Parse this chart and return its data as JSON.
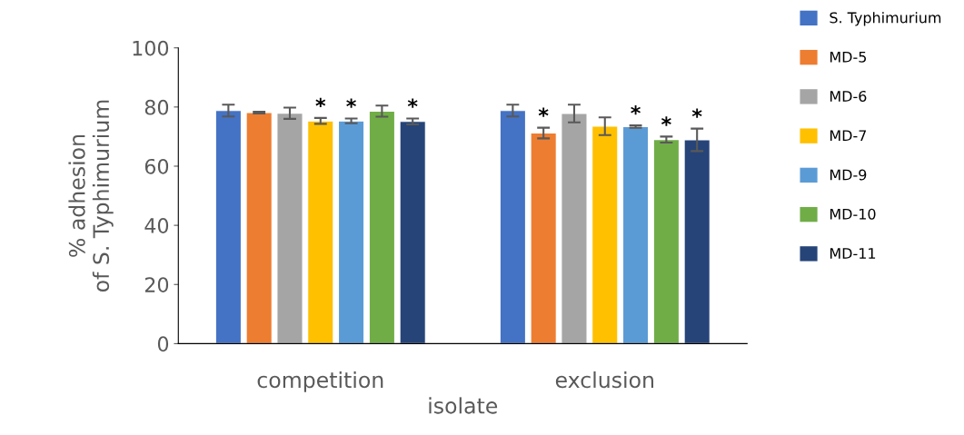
{
  "chart_data": {
    "type": "bar",
    "xlabel": "isolate",
    "ylabel": "% adhesion\nof S. Typhimurium",
    "categories": [
      "competition",
      "exclusion"
    ],
    "ylim": [
      0,
      100
    ],
    "yticks": [
      0,
      20,
      40,
      60,
      80,
      100
    ],
    "grid": false,
    "legend": "right",
    "series": [
      {
        "name": "S. Typhimurium",
        "color": "#4472c4",
        "values": [
          78.8,
          78.8
        ],
        "errors": [
          2,
          2
        ],
        "value_labels": [
          null,
          null
        ]
      },
      {
        "name": "MD-5",
        "color": "#ed7d31",
        "values": [
          78.1,
          71.2
        ],
        "errors": [
          0.3,
          1.8
        ],
        "value_labels": [
          null,
          "*"
        ]
      },
      {
        "name": "MD-6",
        "color": "#a5a5a5",
        "values": [
          77.9,
          77.8
        ],
        "errors": [
          1.9,
          3
        ],
        "value_labels": [
          null,
          null
        ]
      },
      {
        "name": "MD-7",
        "color": "#ffc000",
        "values": [
          75.3,
          73.5
        ],
        "errors": [
          1,
          3
        ],
        "value_labels": [
          "*",
          null
        ]
      },
      {
        "name": "MD-9",
        "color": "#5b9bd5",
        "values": [
          75.3,
          73.4
        ],
        "errors": [
          0.8,
          0.4
        ],
        "value_labels": [
          "*",
          "*"
        ]
      },
      {
        "name": "MD-10",
        "color": "#70ad47",
        "values": [
          78.6,
          69.0
        ],
        "errors": [
          1.9,
          1
        ],
        "value_labels": [
          null,
          "*"
        ]
      },
      {
        "name": "MD-11",
        "color": "#264478",
        "values": [
          75.1,
          68.9
        ],
        "errors": [
          1,
          3.8
        ],
        "value_labels": [
          "*",
          "*"
        ]
      }
    ]
  }
}
